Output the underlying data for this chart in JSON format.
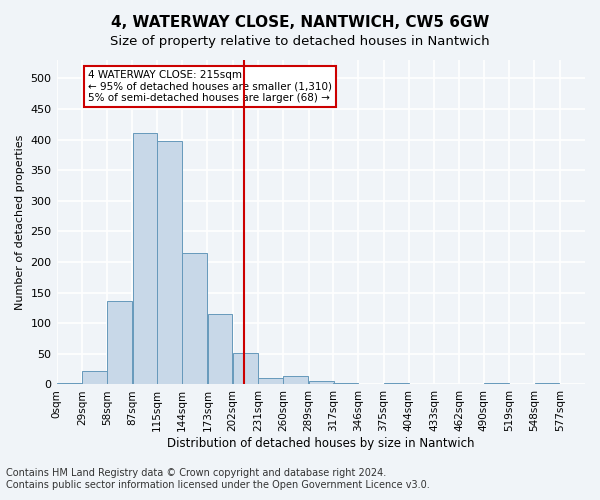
{
  "title": "4, WATERWAY CLOSE, NANTWICH, CW5 6GW",
  "subtitle": "Size of property relative to detached houses in Nantwich",
  "xlabel": "Distribution of detached houses by size in Nantwich",
  "ylabel": "Number of detached properties",
  "bar_values": [
    2,
    22,
    137,
    410,
    397,
    215,
    115,
    52,
    11,
    14,
    6,
    2,
    0,
    2,
    0,
    0,
    0,
    2,
    0,
    2
  ],
  "bin_labels": [
    "0sqm",
    "29sqm",
    "58sqm",
    "87sqm",
    "115sqm",
    "144sqm",
    "173sqm",
    "202sqm",
    "231sqm",
    "260sqm",
    "289sqm",
    "317sqm",
    "346sqm",
    "375sqm",
    "404sqm",
    "433sqm",
    "462sqm",
    "490sqm",
    "519sqm",
    "548sqm",
    "577sqm"
  ],
  "bin_edges": [
    0,
    29,
    58,
    87,
    115,
    144,
    173,
    202,
    231,
    260,
    289,
    317,
    346,
    375,
    404,
    433,
    462,
    490,
    519,
    548,
    577
  ],
  "bar_color": "#c8d8e8",
  "bar_edge_color": "#6699bb",
  "vline_x": 215,
  "vline_color": "#cc0000",
  "annotation_text": "4 WATERWAY CLOSE: 215sqm\n← 95% of detached houses are smaller (1,310)\n5% of semi-detached houses are larger (68) →",
  "annotation_box_color": "#cc0000",
  "ylim": [
    0,
    530
  ],
  "yticks": [
    0,
    50,
    100,
    150,
    200,
    250,
    300,
    350,
    400,
    450,
    500
  ],
  "footer_text": "Contains HM Land Registry data © Crown copyright and database right 2024.\nContains public sector information licensed under the Open Government Licence v3.0.",
  "bg_color": "#f0f4f8",
  "grid_color": "#ffffff",
  "title_fontsize": 11,
  "subtitle_fontsize": 9.5,
  "label_fontsize": 8,
  "footer_fontsize": 7
}
